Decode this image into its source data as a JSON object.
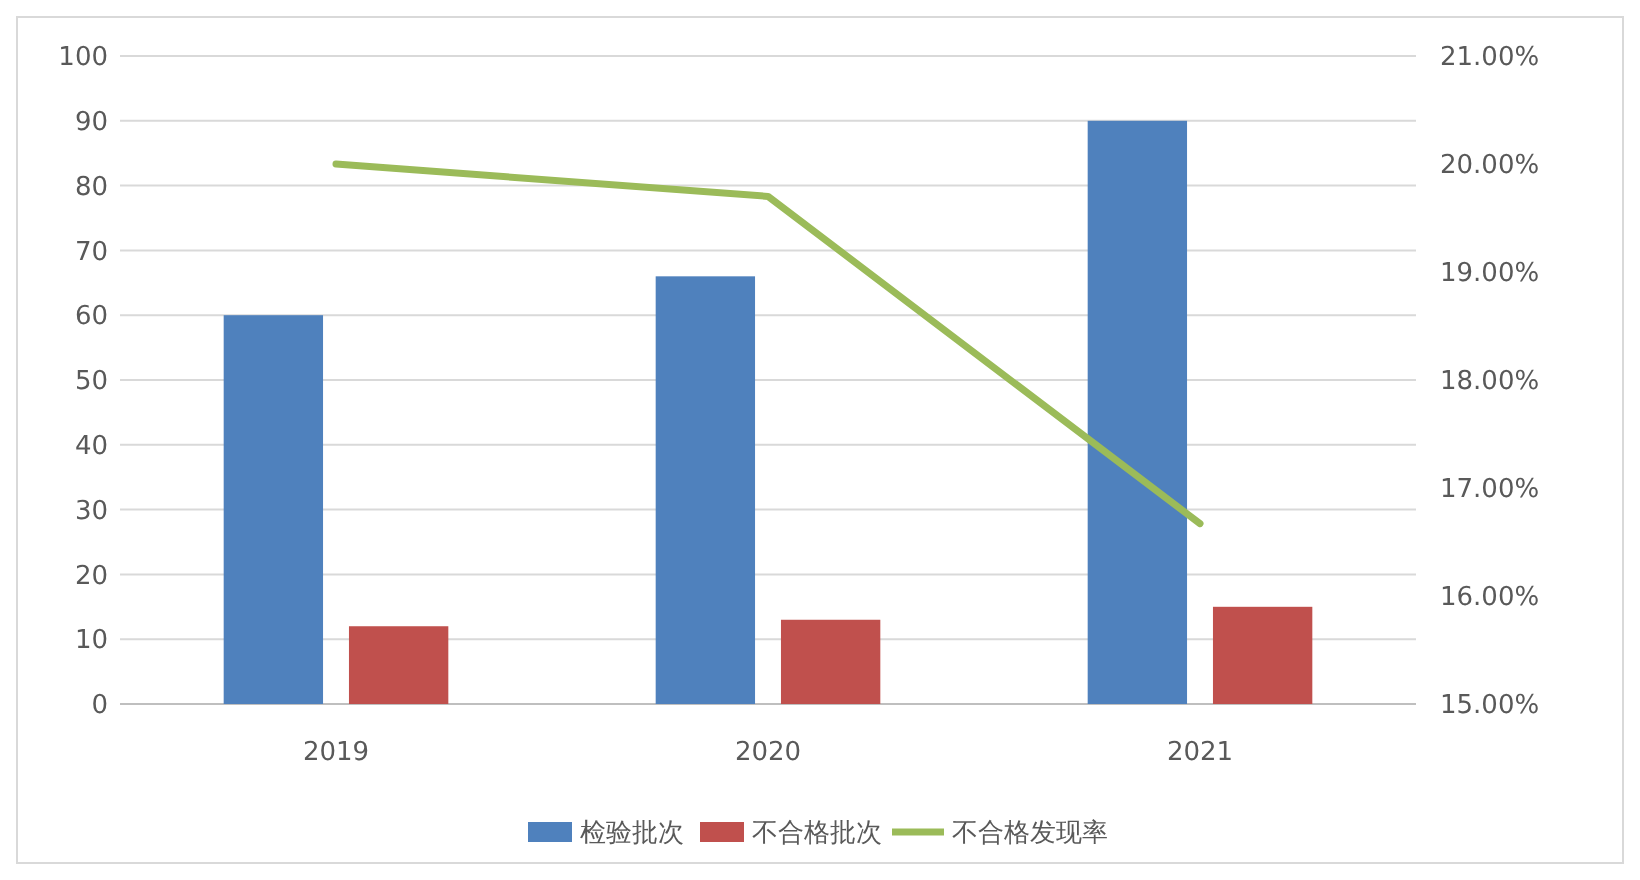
{
  "chart_data": {
    "type": "bar",
    "categories": [
      "2019",
      "2020",
      "2021"
    ],
    "series": [
      {
        "name": "检验批次",
        "color": "#4f81bd",
        "values": [
          60,
          66,
          90
        ]
      },
      {
        "name": "不合格批次",
        "color": "#c0504d",
        "values": [
          12,
          13,
          15
        ]
      },
      {
        "name": "不合格发现率",
        "type": "line",
        "axis": "y2",
        "color": "#9bbb59",
        "values": [
          20.0,
          19.7,
          16.67
        ]
      }
    ],
    "ylim": [
      0,
      100
    ],
    "yticks": [
      0,
      10,
      20,
      30,
      40,
      50,
      60,
      70,
      80,
      90,
      100
    ],
    "y2lim": [
      15,
      21
    ],
    "y2ticks": [
      {
        "value": 15,
        "label": "15.00%"
      },
      {
        "value": 16,
        "label": "16.00%"
      },
      {
        "value": 17,
        "label": "17.00%"
      },
      {
        "value": 18,
        "label": "18.00%"
      },
      {
        "value": 19,
        "label": "19.00%"
      },
      {
        "value": 20,
        "label": "20.00%"
      },
      {
        "value": 21,
        "label": "21.00%"
      }
    ],
    "grid": "y",
    "legend": "bottom",
    "marker": "none"
  }
}
